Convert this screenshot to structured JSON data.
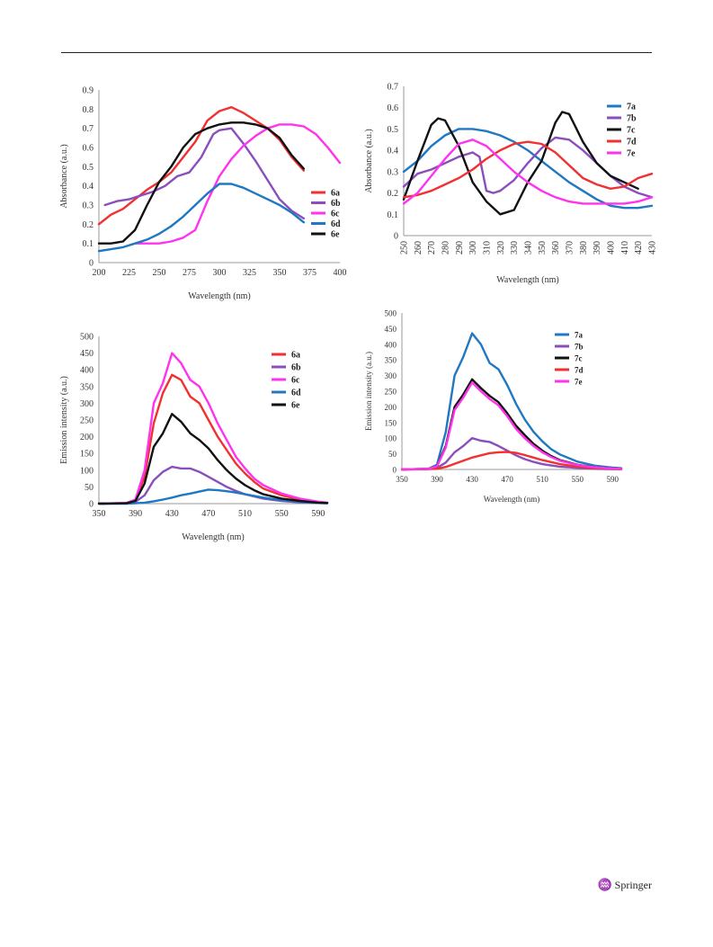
{
  "page": {
    "publisher_logo": "Springer",
    "publisher_mark": "♒"
  },
  "chart_data": [
    {
      "id": "chart-6-absorbance",
      "type": "line",
      "title": "",
      "xlabel": "Wavelength (nm)",
      "ylabel": "Absorbance (a.u.)",
      "xlim": [
        200,
        400
      ],
      "ylim": [
        0,
        0.9
      ],
      "xticks": [
        200,
        225,
        250,
        275,
        300,
        325,
        350,
        375,
        400
      ],
      "yticks": [
        0,
        0.1,
        0.2,
        0.3,
        0.4,
        0.5,
        0.6,
        0.7,
        0.8,
        0.9
      ],
      "legend_position": "right",
      "series": [
        {
          "name": "6a",
          "color": "#f23030",
          "x": [
            200,
            210,
            220,
            230,
            240,
            250,
            260,
            270,
            280,
            290,
            300,
            310,
            320,
            330,
            340,
            350,
            360,
            370
          ],
          "y": [
            0.2,
            0.25,
            0.28,
            0.33,
            0.38,
            0.42,
            0.47,
            0.55,
            0.63,
            0.74,
            0.79,
            0.81,
            0.78,
            0.74,
            0.7,
            0.64,
            0.55,
            0.48
          ]
        },
        {
          "name": "6b",
          "color": "#8a4fbd",
          "x": [
            205,
            215,
            225,
            235,
            245,
            255,
            265,
            275,
            285,
            295,
            300,
            310,
            320,
            330,
            340,
            350,
            360,
            370
          ],
          "y": [
            0.3,
            0.32,
            0.33,
            0.35,
            0.37,
            0.4,
            0.45,
            0.47,
            0.55,
            0.67,
            0.69,
            0.7,
            0.62,
            0.53,
            0.43,
            0.33,
            0.27,
            0.23
          ]
        },
        {
          "name": "6c",
          "color": "#ff33ee",
          "x": [
            230,
            240,
            250,
            260,
            270,
            280,
            290,
            300,
            310,
            320,
            330,
            340,
            350,
            360,
            370,
            380,
            390,
            400
          ],
          "y": [
            0.1,
            0.1,
            0.1,
            0.11,
            0.13,
            0.17,
            0.32,
            0.45,
            0.54,
            0.61,
            0.66,
            0.7,
            0.72,
            0.72,
            0.71,
            0.67,
            0.6,
            0.52
          ]
        },
        {
          "name": "6d",
          "color": "#1f78c1",
          "x": [
            200,
            210,
            220,
            230,
            240,
            250,
            260,
            270,
            280,
            290,
            300,
            310,
            320,
            330,
            340,
            350,
            360,
            370
          ],
          "y": [
            0.06,
            0.07,
            0.08,
            0.1,
            0.12,
            0.15,
            0.19,
            0.24,
            0.3,
            0.36,
            0.41,
            0.41,
            0.39,
            0.36,
            0.33,
            0.3,
            0.26,
            0.21
          ]
        },
        {
          "name": "6e",
          "color": "#111111",
          "x": [
            200,
            210,
            220,
            230,
            240,
            250,
            260,
            270,
            280,
            290,
            300,
            310,
            320,
            330,
            340,
            350,
            360,
            370
          ],
          "y": [
            0.1,
            0.1,
            0.11,
            0.17,
            0.3,
            0.42,
            0.5,
            0.6,
            0.67,
            0.7,
            0.72,
            0.73,
            0.73,
            0.72,
            0.7,
            0.65,
            0.56,
            0.49
          ]
        }
      ]
    },
    {
      "id": "chart-7-absorbance",
      "type": "line",
      "title": "",
      "xlabel": "Wavelength (nm)",
      "ylabel": "Absorbance (a.u.)",
      "xlim": [
        250,
        430
      ],
      "ylim": [
        0,
        0.7
      ],
      "xticks": [
        250,
        260,
        270,
        280,
        290,
        300,
        310,
        320,
        330,
        340,
        350,
        360,
        370,
        380,
        390,
        400,
        410,
        420,
        430
      ],
      "yticks": [
        0,
        0.1,
        0.2,
        0.3,
        0.4,
        0.5,
        0.6,
        0.7
      ],
      "legend_position": "top-right",
      "series": [
        {
          "name": "7a",
          "color": "#1f78c1",
          "x": [
            250,
            260,
            270,
            280,
            290,
            300,
            310,
            320,
            330,
            340,
            350,
            360,
            370,
            380,
            390,
            400,
            410,
            420,
            430
          ],
          "y": [
            0.3,
            0.35,
            0.42,
            0.47,
            0.5,
            0.5,
            0.49,
            0.47,
            0.44,
            0.4,
            0.35,
            0.3,
            0.25,
            0.21,
            0.17,
            0.14,
            0.13,
            0.13,
            0.14
          ]
        },
        {
          "name": "7b",
          "color": "#8a4fbd",
          "x": [
            250,
            260,
            270,
            280,
            290,
            300,
            305,
            310,
            315,
            320,
            330,
            340,
            350,
            360,
            370,
            380,
            390,
            400,
            410,
            420,
            430
          ],
          "y": [
            0.23,
            0.29,
            0.31,
            0.34,
            0.37,
            0.39,
            0.37,
            0.21,
            0.2,
            0.21,
            0.26,
            0.34,
            0.41,
            0.46,
            0.45,
            0.4,
            0.34,
            0.28,
            0.23,
            0.2,
            0.18
          ]
        },
        {
          "name": "7c",
          "color": "#111111",
          "x": [
            250,
            260,
            270,
            275,
            280,
            290,
            300,
            310,
            320,
            330,
            340,
            350,
            360,
            365,
            370,
            380,
            390,
            400,
            410,
            420
          ],
          "y": [
            0.17,
            0.35,
            0.52,
            0.55,
            0.54,
            0.42,
            0.25,
            0.16,
            0.1,
            0.12,
            0.25,
            0.35,
            0.53,
            0.58,
            0.57,
            0.44,
            0.34,
            0.28,
            0.25,
            0.22
          ]
        },
        {
          "name": "7d",
          "color": "#f23030",
          "x": [
            250,
            260,
            270,
            280,
            290,
            300,
            310,
            320,
            330,
            340,
            350,
            360,
            370,
            380,
            390,
            400,
            410,
            420,
            430
          ],
          "y": [
            0.18,
            0.19,
            0.21,
            0.24,
            0.27,
            0.31,
            0.36,
            0.4,
            0.43,
            0.44,
            0.43,
            0.39,
            0.33,
            0.27,
            0.24,
            0.22,
            0.23,
            0.27,
            0.29
          ]
        },
        {
          "name": "7e",
          "color": "#ff33ee",
          "x": [
            250,
            260,
            270,
            280,
            290,
            300,
            310,
            320,
            330,
            340,
            350,
            360,
            370,
            380,
            390,
            400,
            410,
            420,
            430
          ],
          "y": [
            0.15,
            0.2,
            0.28,
            0.36,
            0.43,
            0.45,
            0.42,
            0.36,
            0.3,
            0.25,
            0.21,
            0.18,
            0.16,
            0.15,
            0.15,
            0.15,
            0.15,
            0.16,
            0.18
          ]
        }
      ]
    },
    {
      "id": "chart-6-emission",
      "type": "line",
      "title": "",
      "xlabel": "Wavelength (nm)",
      "ylabel": "Emission intensity (a.u.)",
      "xlim": [
        350,
        600
      ],
      "ylim": [
        0,
        500
      ],
      "xticks": [
        350,
        390,
        430,
        470,
        510,
        550,
        590
      ],
      "yticks": [
        0,
        50,
        100,
        150,
        200,
        250,
        300,
        350,
        400,
        450,
        500
      ],
      "legend_position": "top-right",
      "series": [
        {
          "name": "6a",
          "color": "#f23030",
          "x": [
            350,
            380,
            390,
            400,
            410,
            420,
            430,
            440,
            450,
            460,
            470,
            480,
            490,
            500,
            510,
            520,
            530,
            550,
            570,
            590,
            600
          ],
          "y": [
            0,
            2,
            10,
            80,
            240,
            330,
            385,
            370,
            320,
            300,
            250,
            200,
            160,
            120,
            90,
            65,
            45,
            25,
            12,
            5,
            3
          ]
        },
        {
          "name": "6b",
          "color": "#8a4fbd",
          "x": [
            350,
            380,
            390,
            400,
            410,
            420,
            430,
            440,
            450,
            460,
            470,
            480,
            490,
            500,
            510,
            530,
            550,
            570,
            590,
            600
          ],
          "y": [
            0,
            1,
            5,
            25,
            70,
            95,
            110,
            105,
            105,
            95,
            80,
            65,
            50,
            38,
            28,
            15,
            8,
            4,
            2,
            1
          ]
        },
        {
          "name": "6c",
          "color": "#ff33ee",
          "x": [
            350,
            380,
            390,
            400,
            410,
            420,
            430,
            440,
            450,
            460,
            470,
            480,
            490,
            500,
            510,
            520,
            530,
            550,
            570,
            590,
            600
          ],
          "y": [
            0,
            2,
            12,
            100,
            300,
            360,
            450,
            420,
            370,
            350,
            300,
            240,
            190,
            140,
            105,
            75,
            55,
            30,
            15,
            6,
            3
          ]
        },
        {
          "name": "6d",
          "color": "#1f78c1",
          "x": [
            350,
            380,
            390,
            400,
            410,
            420,
            430,
            440,
            450,
            460,
            470,
            480,
            490,
            500,
            510,
            530,
            550,
            570,
            590,
            600
          ],
          "y": [
            0,
            0,
            1,
            3,
            7,
            12,
            18,
            25,
            30,
            36,
            42,
            40,
            37,
            33,
            28,
            18,
            10,
            5,
            2,
            1
          ]
        },
        {
          "name": "6e",
          "color": "#111111",
          "x": [
            350,
            380,
            390,
            400,
            410,
            420,
            430,
            440,
            450,
            460,
            470,
            480,
            490,
            500,
            510,
            520,
            530,
            550,
            570,
            590,
            600
          ],
          "y": [
            0,
            1,
            8,
            60,
            170,
            210,
            268,
            245,
            210,
            190,
            165,
            130,
            100,
            75,
            55,
            40,
            28,
            15,
            8,
            3,
            2
          ]
        }
      ]
    },
    {
      "id": "chart-7-emission",
      "type": "line",
      "title": "",
      "xlabel": "Wavelength (nm)",
      "ylabel": "Emission intensity (a.u.)",
      "xlim": [
        350,
        600
      ],
      "ylim": [
        0,
        500
      ],
      "xticks": [
        350,
        390,
        430,
        470,
        510,
        550,
        590
      ],
      "yticks": [
        0,
        50,
        100,
        150,
        200,
        250,
        300,
        350,
        400,
        450,
        500
      ],
      "legend_position": "top-right",
      "series": [
        {
          "name": "7a",
          "color": "#1f78c1",
          "x": [
            350,
            380,
            390,
            400,
            410,
            420,
            430,
            440,
            450,
            460,
            470,
            480,
            490,
            500,
            510,
            520,
            530,
            550,
            570,
            590,
            600
          ],
          "y": [
            0,
            2,
            15,
            120,
            300,
            360,
            435,
            400,
            340,
            320,
            270,
            210,
            160,
            120,
            90,
            65,
            48,
            25,
            12,
            6,
            4
          ]
        },
        {
          "name": "7b",
          "color": "#8a4fbd",
          "x": [
            350,
            380,
            390,
            400,
            410,
            420,
            430,
            440,
            450,
            460,
            470,
            480,
            490,
            500,
            510,
            530,
            550,
            570,
            590,
            600
          ],
          "y": [
            0,
            1,
            5,
            22,
            55,
            75,
            100,
            92,
            88,
            75,
            60,
            45,
            33,
            24,
            17,
            9,
            5,
            2,
            1,
            1
          ]
        },
        {
          "name": "7c",
          "color": "#111111",
          "x": [
            350,
            380,
            390,
            400,
            410,
            420,
            430,
            440,
            450,
            460,
            470,
            480,
            490,
            500,
            510,
            520,
            530,
            550,
            570,
            590,
            600
          ],
          "y": [
            0,
            2,
            10,
            75,
            200,
            240,
            288,
            260,
            235,
            215,
            180,
            140,
            110,
            82,
            60,
            43,
            30,
            15,
            7,
            3,
            2
          ]
        },
        {
          "name": "7d",
          "color": "#f23030",
          "x": [
            350,
            390,
            400,
            410,
            420,
            430,
            440,
            450,
            460,
            470,
            480,
            490,
            500,
            510,
            530,
            550,
            570,
            590,
            600
          ],
          "y": [
            0,
            2,
            8,
            18,
            28,
            38,
            45,
            52,
            55,
            56,
            53,
            46,
            38,
            30,
            17,
            9,
            4,
            2,
            1
          ]
        },
        {
          "name": "7e",
          "color": "#ff33ee",
          "x": [
            350,
            380,
            390,
            400,
            410,
            420,
            430,
            440,
            450,
            460,
            470,
            480,
            490,
            500,
            510,
            520,
            530,
            550,
            570,
            590,
            600
          ],
          "y": [
            0,
            2,
            10,
            70,
            190,
            230,
            278,
            250,
            225,
            205,
            170,
            130,
            100,
            75,
            55,
            40,
            28,
            14,
            7,
            3,
            2
          ]
        }
      ]
    }
  ]
}
